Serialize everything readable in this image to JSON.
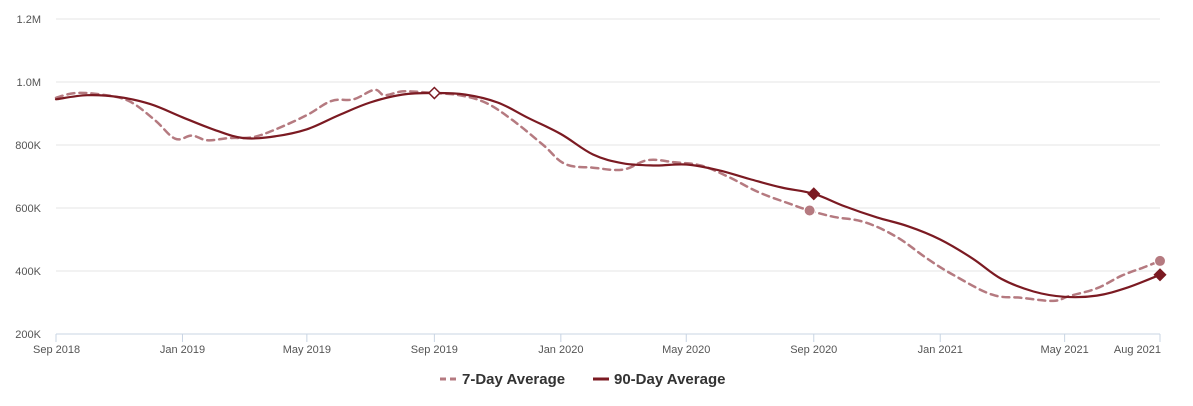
{
  "colors": {
    "seven_day": "#b57a80",
    "ninety_day": "#7b1a22",
    "grid": "#e6e6e6",
    "axis": "#c8d4e3",
    "tick_text": "#555555",
    "legend_text": "#333333"
  },
  "chart_data": {
    "type": "line",
    "title": "",
    "xlabel": "",
    "ylabel": "",
    "x_axis": {
      "type": "date",
      "range": [
        "2018-09-01",
        "2021-08-01"
      ],
      "ticks": [
        {
          "date": "2018-09-01",
          "label": "Sep 2018"
        },
        {
          "date": "2019-01-01",
          "label": "Jan 2019"
        },
        {
          "date": "2019-05-01",
          "label": "May 2019"
        },
        {
          "date": "2019-09-01",
          "label": "Sep 2019"
        },
        {
          "date": "2020-01-01",
          "label": "Jan 2020"
        },
        {
          "date": "2020-05-01",
          "label": "May 2020"
        },
        {
          "date": "2020-09-01",
          "label": "Sep 2020"
        },
        {
          "date": "2021-01-01",
          "label": "Jan 2021"
        },
        {
          "date": "2021-05-01",
          "label": "May 2021"
        },
        {
          "date": "2021-08-01",
          "label": "Aug 2021"
        }
      ]
    },
    "y_axis": {
      "range": [
        200000,
        1200000
      ],
      "ticks": [
        {
          "value": 200000,
          "label": "200K"
        },
        {
          "value": 400000,
          "label": "400K"
        },
        {
          "value": 600000,
          "label": "600K"
        },
        {
          "value": 800000,
          "label": "800K"
        },
        {
          "value": 1000000,
          "label": "1.0M"
        },
        {
          "value": 1200000,
          "label": "1.2M"
        }
      ]
    },
    "grid": true,
    "legend_position": "bottom-center",
    "series": [
      {
        "name": "7-Day Average",
        "style": "dashed",
        "points": [
          [
            "2018-09-01",
            950000
          ],
          [
            "2018-09-20",
            965000
          ],
          [
            "2018-10-15",
            960000
          ],
          [
            "2018-11-10",
            940000
          ],
          [
            "2018-12-05",
            880000
          ],
          [
            "2018-12-25",
            820000
          ],
          [
            "2019-01-10",
            830000
          ],
          [
            "2019-01-25",
            815000
          ],
          [
            "2019-02-15",
            822000
          ],
          [
            "2019-03-10",
            825000
          ],
          [
            "2019-04-01",
            850000
          ],
          [
            "2019-05-01",
            895000
          ],
          [
            "2019-05-25",
            940000
          ],
          [
            "2019-06-15",
            945000
          ],
          [
            "2019-07-05",
            975000
          ],
          [
            "2019-07-15",
            958000
          ],
          [
            "2019-08-01",
            970000
          ],
          [
            "2019-08-20",
            968000
          ],
          [
            "2019-09-01",
            965000
          ],
          [
            "2019-09-25",
            958000
          ],
          [
            "2019-10-20",
            935000
          ],
          [
            "2019-11-15",
            880000
          ],
          [
            "2019-12-15",
            800000
          ],
          [
            "2020-01-05",
            740000
          ],
          [
            "2020-02-01",
            728000
          ],
          [
            "2020-03-01",
            722000
          ],
          [
            "2020-03-25",
            752000
          ],
          [
            "2020-04-20",
            745000
          ],
          [
            "2020-05-15",
            735000
          ],
          [
            "2020-06-10",
            700000
          ],
          [
            "2020-07-10",
            650000
          ],
          [
            "2020-08-10",
            612000
          ],
          [
            "2020-08-28",
            592000
          ],
          [
            "2020-09-20",
            572000
          ],
          [
            "2020-10-20",
            555000
          ],
          [
            "2020-11-20",
            508000
          ],
          [
            "2020-12-20",
            438000
          ],
          [
            "2021-01-15",
            385000
          ],
          [
            "2021-02-20",
            325000
          ],
          [
            "2021-03-20",
            315000
          ],
          [
            "2021-04-20",
            305000
          ],
          [
            "2021-05-05",
            320000
          ],
          [
            "2021-06-01",
            345000
          ],
          [
            "2021-06-25",
            385000
          ],
          [
            "2021-07-15",
            410000
          ],
          [
            "2021-08-01",
            432000
          ]
        ]
      },
      {
        "name": "90-Day Average",
        "style": "solid",
        "points": [
          [
            "2018-09-01",
            945000
          ],
          [
            "2018-10-01",
            958000
          ],
          [
            "2018-11-01",
            952000
          ],
          [
            "2018-12-01",
            930000
          ],
          [
            "2019-01-01",
            888000
          ],
          [
            "2019-02-01",
            848000
          ],
          [
            "2019-03-01",
            822000
          ],
          [
            "2019-04-01",
            828000
          ],
          [
            "2019-05-01",
            850000
          ],
          [
            "2019-06-01",
            895000
          ],
          [
            "2019-07-01",
            935000
          ],
          [
            "2019-08-01",
            960000
          ],
          [
            "2019-09-01",
            965000
          ],
          [
            "2019-10-01",
            960000
          ],
          [
            "2019-11-01",
            935000
          ],
          [
            "2019-12-01",
            885000
          ],
          [
            "2020-01-01",
            835000
          ],
          [
            "2020-02-01",
            770000
          ],
          [
            "2020-03-01",
            742000
          ],
          [
            "2020-04-01",
            735000
          ],
          [
            "2020-05-01",
            738000
          ],
          [
            "2020-06-01",
            720000
          ],
          [
            "2020-07-01",
            692000
          ],
          [
            "2020-08-01",
            665000
          ],
          [
            "2020-09-01",
            645000
          ],
          [
            "2020-10-01",
            605000
          ],
          [
            "2020-11-01",
            570000
          ],
          [
            "2020-12-01",
            542000
          ],
          [
            "2021-01-01",
            500000
          ],
          [
            "2021-02-01",
            440000
          ],
          [
            "2021-03-01",
            375000
          ],
          [
            "2021-04-01",
            335000
          ],
          [
            "2021-05-01",
            318000
          ],
          [
            "2021-06-01",
            322000
          ],
          [
            "2021-07-01",
            348000
          ],
          [
            "2021-08-01",
            388000
          ]
        ]
      }
    ],
    "markers": [
      {
        "series": "90-Day Average",
        "date": "2019-09-01",
        "value": 965000,
        "shape": "diamond",
        "style": "hollow"
      },
      {
        "series": "90-Day Average",
        "date": "2020-09-01",
        "value": 645000,
        "shape": "diamond",
        "style": "filled"
      },
      {
        "series": "90-Day Average",
        "date": "2021-08-01",
        "value": 388000,
        "shape": "diamond",
        "style": "filled"
      },
      {
        "series": "7-Day Average",
        "date": "2020-08-28",
        "value": 592000,
        "shape": "circle",
        "style": "filled"
      },
      {
        "series": "7-Day Average",
        "date": "2021-08-01",
        "value": 432000,
        "shape": "circle",
        "style": "filled"
      }
    ]
  }
}
